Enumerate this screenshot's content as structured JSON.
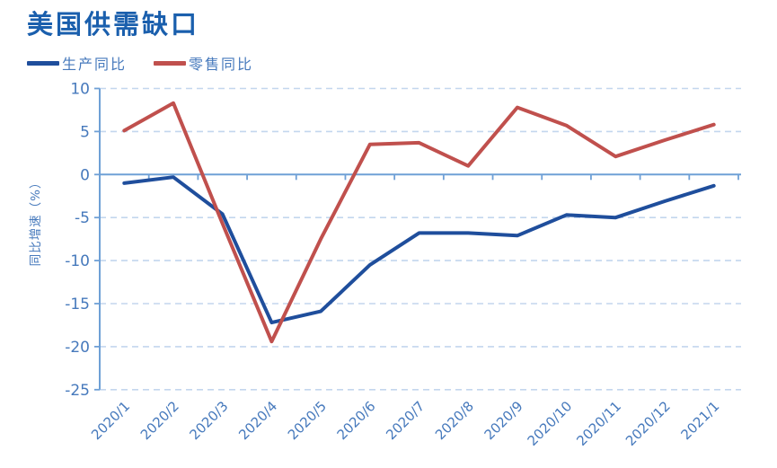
{
  "chart_data": {
    "type": "line",
    "title": "美国供需缺口",
    "ylabel": "同比增速（%）",
    "xlabel": "",
    "categories": [
      "2020/1",
      "2020/2",
      "2020/3",
      "2020/4",
      "2020/5",
      "2020/6",
      "2020/7",
      "2020/8",
      "2020/9",
      "2020/10",
      "2020/11",
      "2020/12",
      "2021/1"
    ],
    "series": [
      {
        "name": "生产同比",
        "color": "#1F4E9C",
        "values": [
          -1.0,
          -0.3,
          -4.6,
          -17.2,
          -15.9,
          -10.5,
          -6.8,
          -6.8,
          -7.1,
          -4.7,
          -5.0,
          -3.1,
          -1.3
        ]
      },
      {
        "name": "零售同比",
        "color": "#C0504D",
        "values": [
          5.1,
          8.3,
          -5.7,
          -19.4,
          -7.5,
          3.5,
          3.7,
          1.0,
          7.8,
          5.7,
          2.1,
          4.0,
          5.8
        ]
      }
    ],
    "y_ticks": [
      10,
      5,
      0,
      -5,
      -10,
      -15,
      -20,
      -25
    ],
    "ylim": [
      -25,
      10
    ],
    "grid": "horizontal dashed, solid zero baseline",
    "legend_position": "top-left",
    "colors": {
      "title_text": "#1A5FAD",
      "tick_text": "#4679BC",
      "axis_line": "#6FA0D6",
      "gridline": "#C3D6EE"
    }
  }
}
